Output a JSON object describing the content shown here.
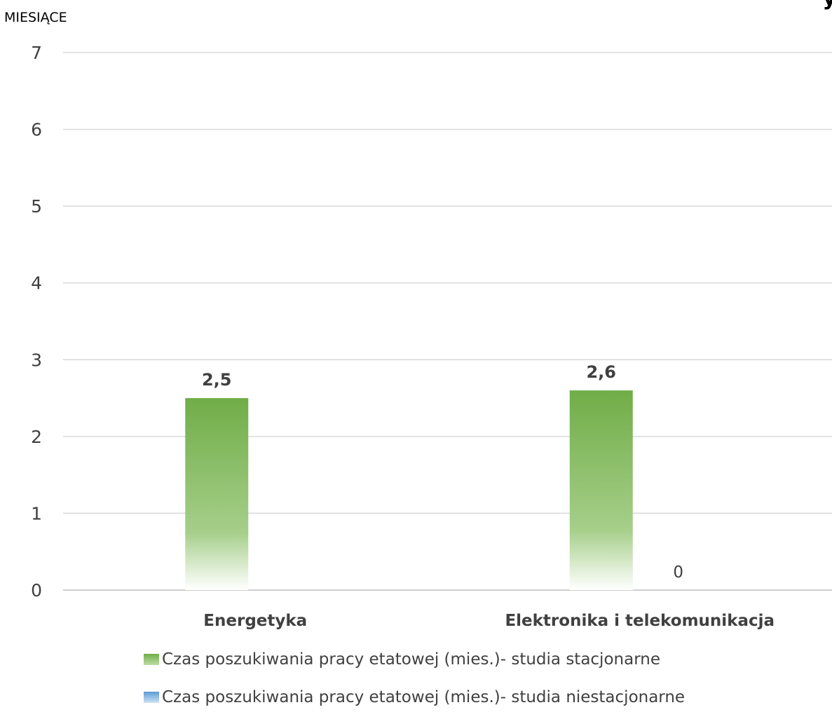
{
  "chart_data": {
    "type": "bar",
    "title_fragment": "y",
    "ylabel": "MIESIĄCE",
    "xlabel": "",
    "ylim": [
      0,
      7
    ],
    "yticks": [
      0,
      1,
      2,
      3,
      4,
      5,
      6,
      7
    ],
    "grid": true,
    "legend_position": "bottom",
    "categories": [
      "Energetyka",
      "Elektronika i telekomunikacja"
    ],
    "series": [
      {
        "name": "Czas poszukiwania pracy etatowej (mies.)- studia stacjonarne",
        "color": "#70AD47",
        "values": [
          2.5,
          2.6
        ],
        "labels": [
          "2,5",
          "2,6"
        ]
      },
      {
        "name": "Czas poszukiwania pracy etatowej (mies.)- studia niestacjonarne",
        "color": "#5B9BD5",
        "values": [
          null,
          0
        ],
        "labels": [
          "",
          "0"
        ]
      }
    ]
  }
}
